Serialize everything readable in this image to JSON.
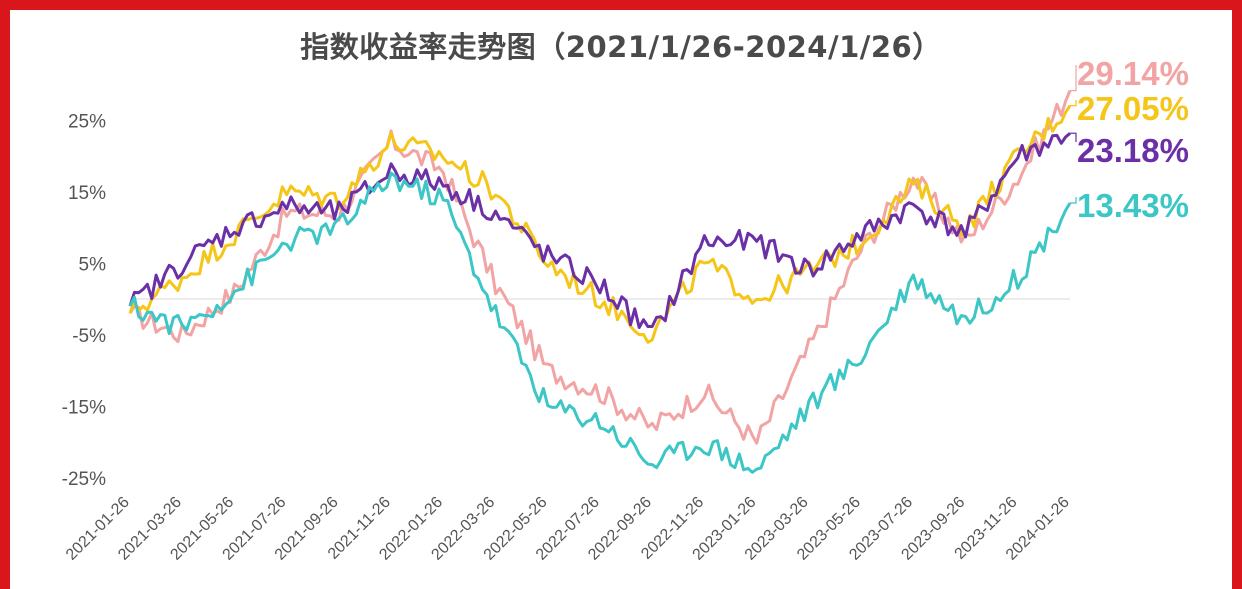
{
  "chart_data": {
    "type": "line",
    "title": "指数收益率走势图（2021/1/26-2024/1/26）",
    "xlabel": "",
    "ylabel": "",
    "ylim": [
      -27,
      30
    ],
    "y_ticks": [
      "25%",
      "15%",
      "5%",
      "-5%",
      "-15%",
      "-25%"
    ],
    "y_tick_values": [
      25,
      15,
      5,
      -5,
      -15,
      -25
    ],
    "x_ticks": [
      "2021-01-26",
      "2021-03-26",
      "2021-05-26",
      "2021-07-26",
      "2021-09-26",
      "2021-11-26",
      "2022-01-26",
      "2022-03-26",
      "2022-05-26",
      "2022-07-26",
      "2022-09-26",
      "2022-11-26",
      "2023-01-26",
      "2023-03-26",
      "2023-05-26",
      "2023-07-26",
      "2023-09-26",
      "2023-11-26",
      "2024-01-26"
    ],
    "grid": false,
    "series": [
      {
        "color": "#f2a4a4",
        "end_label": "29.14%",
        "x": [
          "2021-01-26",
          "2021-03-26",
          "2021-05-26",
          "2021-07-26",
          "2021-09-26",
          "2021-11-26",
          "2022-01-26",
          "2022-03-26",
          "2022-05-26",
          "2022-07-26",
          "2022-09-26",
          "2022-11-26",
          "2023-01-26",
          "2023-03-26",
          "2023-05-26",
          "2023-07-26",
          "2023-09-26",
          "2023-11-26",
          "2024-01-26"
        ],
        "values": [
          -2,
          -5,
          1,
          12,
          12,
          22,
          18,
          2,
          -10,
          -13,
          -18,
          -13,
          -20,
          -7,
          7,
          17,
          8,
          17,
          29.14
        ]
      },
      {
        "color": "#f5c518",
        "end_label": "27.05%",
        "x": [
          "2021-01-26",
          "2021-03-26",
          "2021-05-26",
          "2021-07-26",
          "2021-09-26",
          "2021-11-26",
          "2022-01-26",
          "2022-03-26",
          "2022-05-26",
          "2022-07-26",
          "2022-09-26",
          "2022-11-26",
          "2023-01-26",
          "2023-03-26",
          "2023-05-26",
          "2023-07-26",
          "2023-09-26",
          "2023-11-26",
          "2024-01-26"
        ],
        "values": [
          -2,
          3,
          9,
          15,
          14,
          22,
          20,
          15,
          5,
          0,
          -5,
          5,
          0,
          4,
          8,
          16,
          10,
          20,
          27.05
        ]
      },
      {
        "color": "#6b2fa6",
        "end_label": "23.18%",
        "x": [
          "2021-01-26",
          "2021-03-26",
          "2021-05-26",
          "2021-07-26",
          "2021-09-26",
          "2021-11-26",
          "2022-01-26",
          "2022-03-26",
          "2022-05-26",
          "2022-07-26",
          "2022-09-26",
          "2022-11-26",
          "2023-01-26",
          "2023-03-26",
          "2023-05-26",
          "2023-07-26",
          "2023-09-26",
          "2023-11-26",
          "2024-01-26"
        ],
        "values": [
          -1,
          5,
          10,
          13,
          12,
          18,
          16,
          12,
          6,
          2,
          -5,
          8,
          8,
          4,
          9,
          13,
          9,
          20,
          23.18
        ]
      },
      {
        "color": "#3cc6c6",
        "end_label": "13.43%",
        "x": [
          "2021-01-26",
          "2021-03-26",
          "2021-05-26",
          "2021-07-26",
          "2021-09-26",
          "2021-11-26",
          "2022-01-26",
          "2022-03-26",
          "2022-05-26",
          "2022-07-26",
          "2022-09-26",
          "2022-11-26",
          "2023-01-26",
          "2023-03-26",
          "2023-05-26",
          "2023-07-26",
          "2023-09-26",
          "2023-11-26",
          "2024-01-26"
        ],
        "values": [
          -1,
          -4,
          1,
          8,
          10,
          17,
          14,
          -2,
          -15,
          -17,
          -23,
          -20,
          -24,
          -15,
          -8,
          3,
          -3,
          3,
          13.43
        ]
      }
    ]
  }
}
